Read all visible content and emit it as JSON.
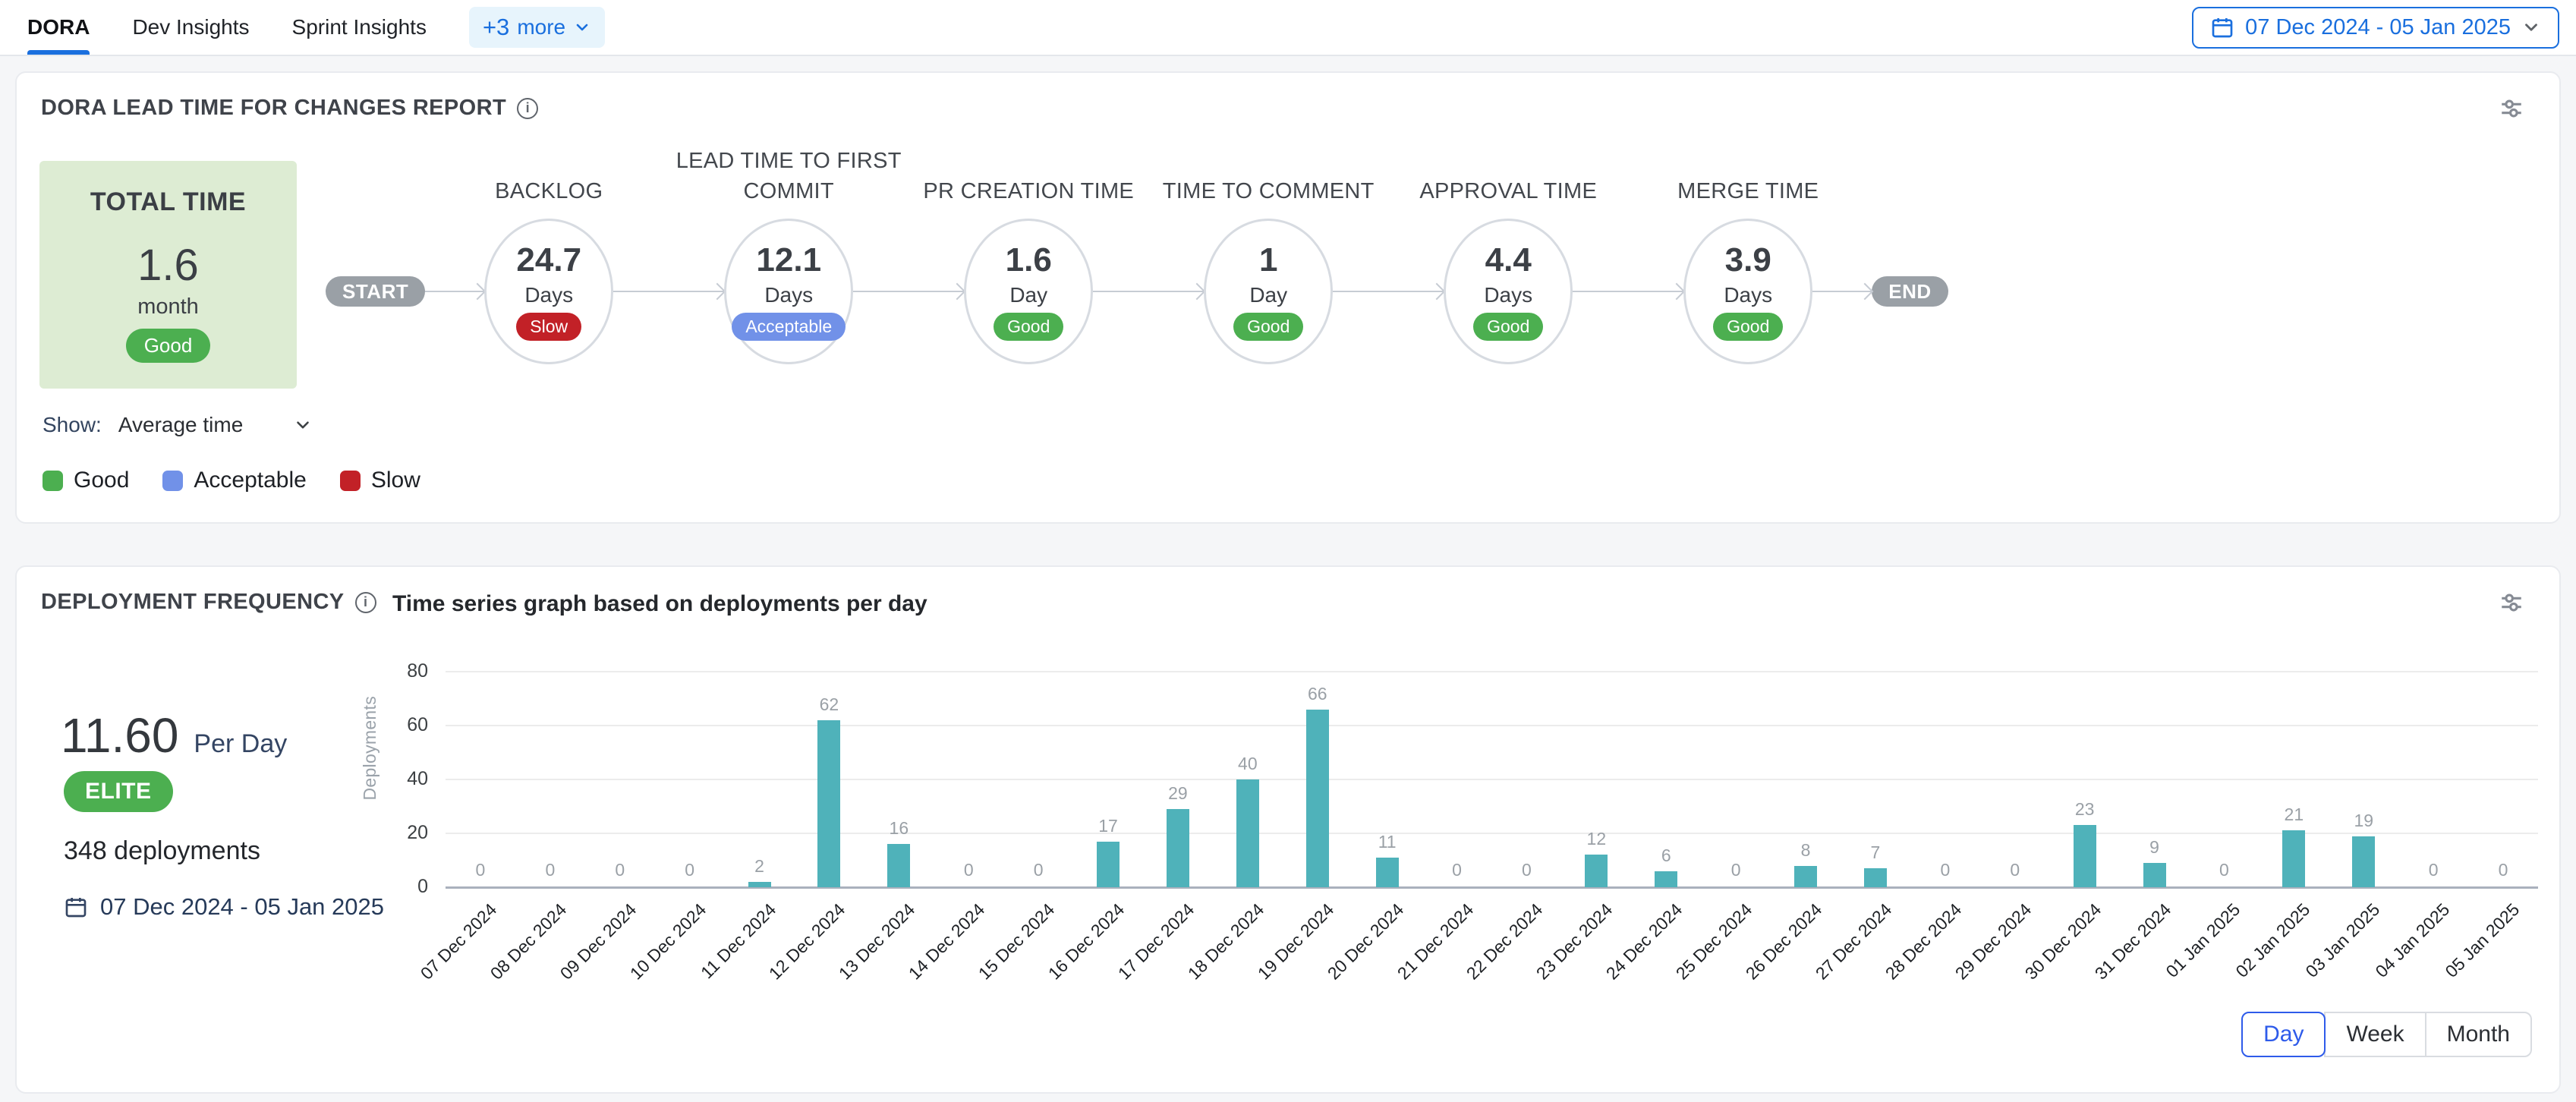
{
  "colors": {
    "accent_blue": "#1a6fde",
    "good_green": "#4caf50",
    "acceptable_blue": "#7191e8",
    "slow_red": "#c22127",
    "elite_green": "#4caf50",
    "bar_teal": "#4fb2ba",
    "flow_pill_gray": "#9aa0a6"
  },
  "tab_bar": {
    "tabs": [
      {
        "label": "DORA",
        "active": true
      },
      {
        "label": "Dev Insights",
        "active": false
      },
      {
        "label": "Sprint Insights",
        "active": false
      }
    ],
    "more_chip": {
      "plus_label": "+3",
      "text": "more"
    },
    "date_picker": "07 Dec 2024 - 05 Jan 2025"
  },
  "lead_time_card": {
    "title": "DORA LEAD TIME FOR CHANGES REPORT",
    "total": {
      "label": "TOTAL TIME",
      "value": "1.6",
      "unit": "month",
      "status": "Good"
    },
    "start_label": "START",
    "end_label": "END",
    "stages": [
      {
        "name": "BACKLOG",
        "value": "24.7",
        "unit": "Days",
        "status": "Slow"
      },
      {
        "name": "LEAD TIME TO FIRST COMMIT",
        "value": "12.1",
        "unit": "Days",
        "status": "Acceptable"
      },
      {
        "name": "PR CREATION TIME",
        "value": "1.6",
        "unit": "Day",
        "status": "Good"
      },
      {
        "name": "TIME TO COMMENT",
        "value": "1",
        "unit": "Day",
        "status": "Good"
      },
      {
        "name": "APPROVAL TIME",
        "value": "4.4",
        "unit": "Days",
        "status": "Good"
      },
      {
        "name": "MERGE TIME",
        "value": "3.9",
        "unit": "Days",
        "status": "Good"
      }
    ],
    "status_colors": {
      "Good": "#4caf50",
      "Acceptable": "#7191e8",
      "Slow": "#c22127"
    },
    "show_label": "Show:",
    "show_value": "Average time",
    "legend": [
      {
        "label": "Good",
        "color": "#4caf50"
      },
      {
        "label": "Acceptable",
        "color": "#7191e8"
      },
      {
        "label": "Slow",
        "color": "#c22127"
      }
    ]
  },
  "deployment_card": {
    "title": "DEPLOYMENT FREQUENCY",
    "subtitle": "Time series graph based on deployments per day",
    "rate_value": "11.60",
    "rate_unit": "Per Day",
    "tier": "ELITE",
    "total_label": "348 deployments",
    "date_range": "07 Dec 2024 - 05 Jan 2025",
    "granularity": [
      {
        "label": "Day",
        "active": true
      },
      {
        "label": "Week",
        "active": false
      },
      {
        "label": "Month",
        "active": false
      }
    ]
  },
  "chart_data": {
    "type": "bar",
    "title": "Time series graph based on deployments per day",
    "xlabel": "",
    "ylabel": "Deployments",
    "ylim": [
      0,
      80
    ],
    "yticks": [
      0,
      20,
      40,
      60,
      80
    ],
    "grid": true,
    "bar_color": "#4fb2ba",
    "categories": [
      "07 Dec 2024",
      "08 Dec 2024",
      "09 Dec 2024",
      "10 Dec 2024",
      "11 Dec 2024",
      "12 Dec 2024",
      "13 Dec 2024",
      "14 Dec 2024",
      "15 Dec 2024",
      "16 Dec 2024",
      "17 Dec 2024",
      "18 Dec 2024",
      "19 Dec 2024",
      "20 Dec 2024",
      "21 Dec 2024",
      "22 Dec 2024",
      "23 Dec 2024",
      "24 Dec 2024",
      "25 Dec 2024",
      "26 Dec 2024",
      "27 Dec 2024",
      "28 Dec 2024",
      "29 Dec 2024",
      "30 Dec 2024",
      "31 Dec 2024",
      "01 Jan 2025",
      "02 Jan 2025",
      "03 Jan 2025",
      "04 Jan 2025",
      "05 Jan 2025"
    ],
    "values": [
      0,
      0,
      0,
      0,
      2,
      62,
      16,
      0,
      0,
      17,
      29,
      40,
      66,
      11,
      0,
      0,
      12,
      6,
      0,
      8,
      7,
      0,
      0,
      23,
      9,
      0,
      21,
      19,
      0,
      0
    ]
  }
}
